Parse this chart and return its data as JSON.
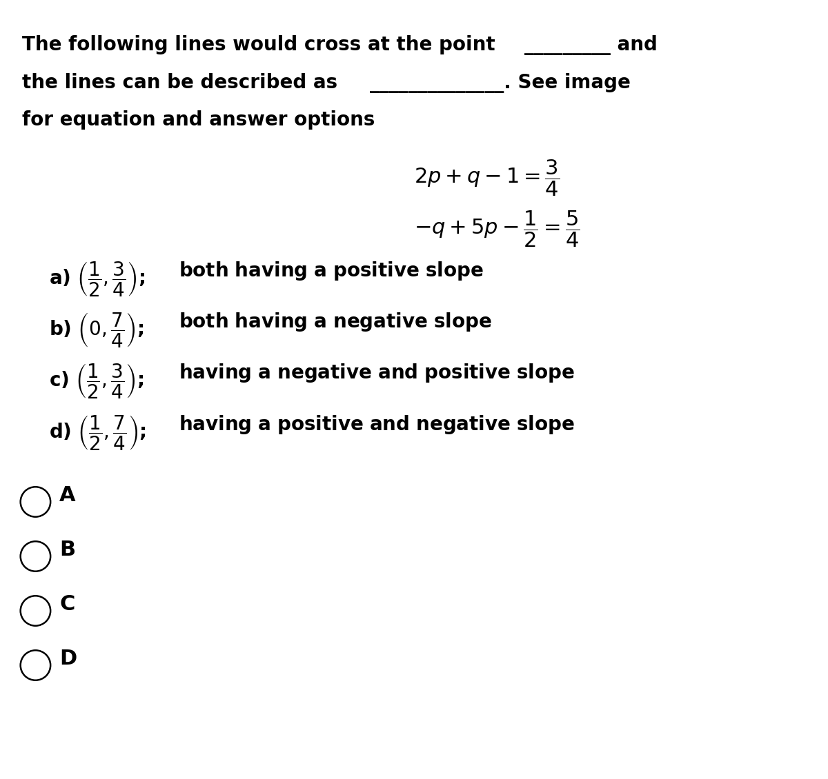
{
  "title_line1": "The following lines would cross at the point _________ and",
  "title_line2": "the lines can be described as ______________. See image",
  "title_line3": "for equation and answer options",
  "eq1": "2p + q - 1 = \\dfrac{3}{4}",
  "eq2": "-q + 5p - \\dfrac{1}{2} = \\dfrac{5}{4}",
  "option_a": "\\textbf{a)} \\left(\\dfrac{1}{2},\\dfrac{3}{4}\\right)\\textbf{; both having a positive slope}",
  "option_b": "\\textbf{b)} \\left(0,\\dfrac{7}{4}\\right)\\textbf{;both having a negative slope}",
  "option_c": "\\textbf{c)} \\left(\\dfrac{1}{2},\\dfrac{3}{4}\\right)\\textbf{; having a negative and positive slope}",
  "option_d": "\\textbf{d)} \\left(\\dfrac{1}{2},\\dfrac{7}{4}\\right)\\textbf{; having a positive and negative slope}",
  "radio_labels": [
    "A",
    "B",
    "C",
    "D"
  ],
  "bg_color": "#ffffff",
  "text_color": "#000000",
  "font_size_title": 20,
  "font_size_eq": 20,
  "font_size_options": 19,
  "font_size_radio": 20
}
